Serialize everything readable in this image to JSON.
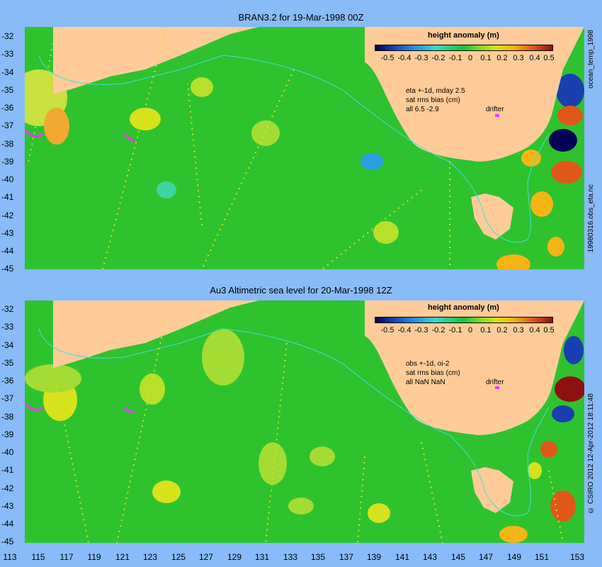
{
  "top_panel": {
    "title": "BRAN3.2 for 19-Mar-1998 00Z",
    "legend_title": "height anomaly (m)",
    "stats": [
      "eta +-1d, mday 2.5",
      "sat rms bias (cm)",
      "all 6.5 -2.9"
    ],
    "drifter_label": "drifter",
    "side_text": "ocean_temp_1998",
    "side_text_lower": "19980316.obs_eta.nc"
  },
  "bottom_panel": {
    "title": "Au3 Altimetric sea level  for 20-Mar-1998 12Z",
    "legend_title": "height anomaly (m)",
    "stats": [
      "obs +-1d, oi-2",
      "sat rms bias (cm)",
      "all NaN NaN"
    ],
    "drifter_label": "drifter",
    "side_text": "© CSIRO 2012  12-Apr-2012 18:11:48"
  },
  "legend_ticks": [
    "-0.5",
    "-0.4",
    "-0.3",
    "-0.2",
    "-0.1",
    "0",
    "0.1",
    "0.2",
    "0.3",
    "0.4",
    "0.5"
  ],
  "y_ticks": [
    "-32",
    "-33",
    "-34",
    "-35",
    "-36",
    "-37",
    "-38",
    "-39",
    "-40",
    "-41",
    "-42",
    "-43",
    "-44",
    "-45"
  ],
  "x_ticks": [
    "113",
    "115",
    "117",
    "119",
    "121",
    "123",
    "125",
    "127",
    "129",
    "131",
    "133",
    "135",
    "137",
    "139",
    "141",
    "143",
    "145",
    "147",
    "149",
    "151",
    "153"
  ],
  "colors": {
    "background": "#88bbf7",
    "land": "#ffcc99",
    "ocean_base": "#2fc22f",
    "current_line": "#3ee0e0",
    "drifter": "#ff33ff"
  }
}
